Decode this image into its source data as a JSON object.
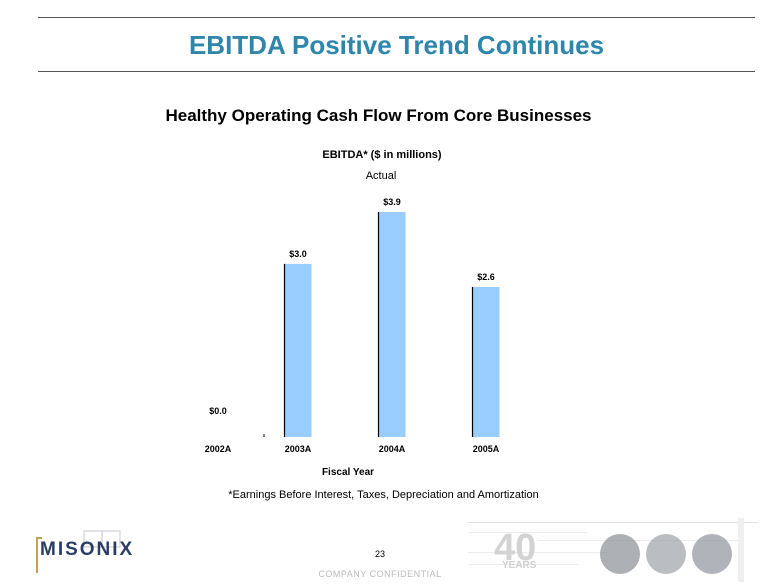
{
  "slide": {
    "title": "EBITDA Positive Trend Continues",
    "subtitle": "Healthy Operating Cash Flow From Core Businesses",
    "footnote": "*Earnings Before Interest, Taxes, Depreciation and Amortization",
    "page_number": "23",
    "confidential": "COMPANY CONFIDENTIAL"
  },
  "brand": {
    "logo_text": "MISONIX",
    "anniversary_number": "40",
    "anniversary_word": "YEARS"
  },
  "chart_data": {
    "type": "bar",
    "title": "EBITDA* ($ in millions)",
    "subtitle": "Actual",
    "xlabel": "Fiscal Year",
    "ylabel": "",
    "categories": [
      "2002A",
      "2003A",
      "2004A",
      "2005A"
    ],
    "values": [
      0.0,
      3.0,
      3.9,
      2.6
    ],
    "data_labels": [
      "$0.0",
      "$3.0",
      "$3.9",
      "$2.6"
    ],
    "ylim": [
      0,
      3.9
    ],
    "grid": false,
    "legend": "none",
    "bar_color": "#99ccff",
    "bar_edge_color": "#000000"
  },
  "colors": {
    "title": "#2e86ab",
    "rule": "#555555",
    "logo_text": "#2b3d63",
    "logo_accent": "#c8a24a"
  }
}
